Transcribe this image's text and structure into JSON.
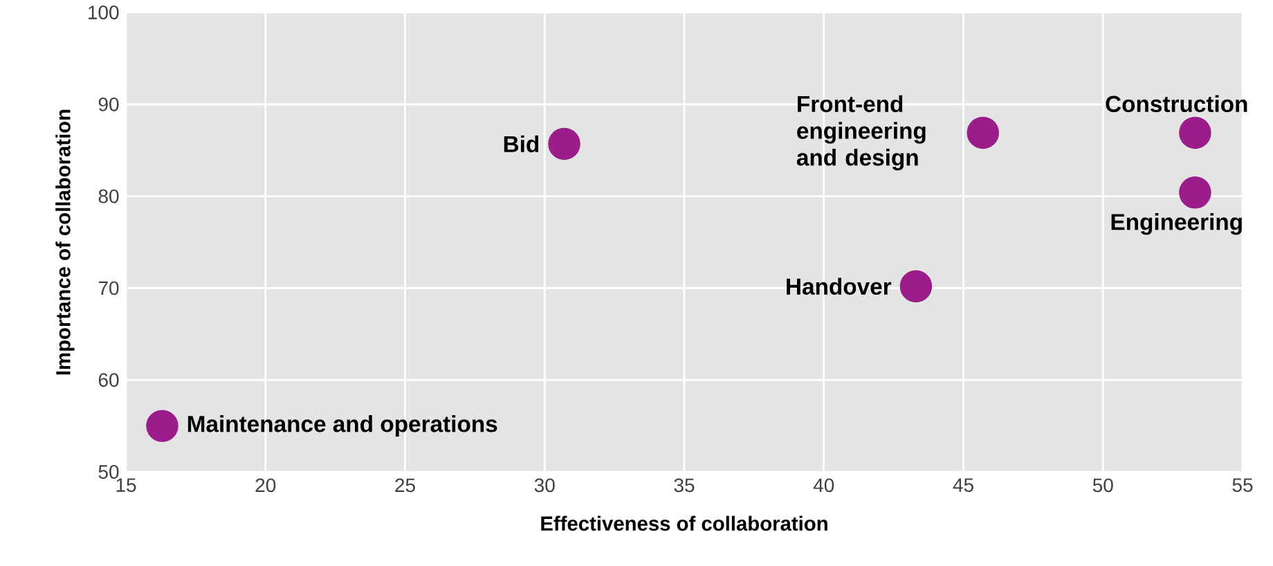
{
  "chart_data": {
    "type": "scatter",
    "xlabel": "Effectiveness of collaboration",
    "ylabel": "Importance of collaboration",
    "x": [
      16.3,
      30.7,
      43.3,
      45.7,
      53.3,
      53.3
    ],
    "series": [
      {
        "color": "#9b1d8a",
        "values": [
          55.0,
          85.7,
          70.2,
          86.9,
          86.9,
          80.4
        ]
      }
    ],
    "annotations": [
      {
        "text": "Maintenance and operations",
        "x": 16.3,
        "y": 55.0
      },
      {
        "text": "Bid",
        "x": 30.7,
        "y": 85.7
      },
      {
        "text": "Handover",
        "x": 43.3,
        "y": 70.2
      },
      {
        "text": "Front-end engineering and design",
        "x": 45.7,
        "y": 86.9
      },
      {
        "text": "Construction",
        "x": 53.3,
        "y": 86.9
      },
      {
        "text": "Engineering",
        "x": 53.3,
        "y": 80.4
      }
    ],
    "xlim": [
      15,
      55
    ],
    "ylim": [
      50,
      100
    ],
    "xticks": [
      15,
      20,
      25,
      30,
      35,
      40,
      45,
      50,
      55
    ],
    "yticks": [
      50,
      60,
      70,
      80,
      90,
      100
    ],
    "grid": true
  }
}
